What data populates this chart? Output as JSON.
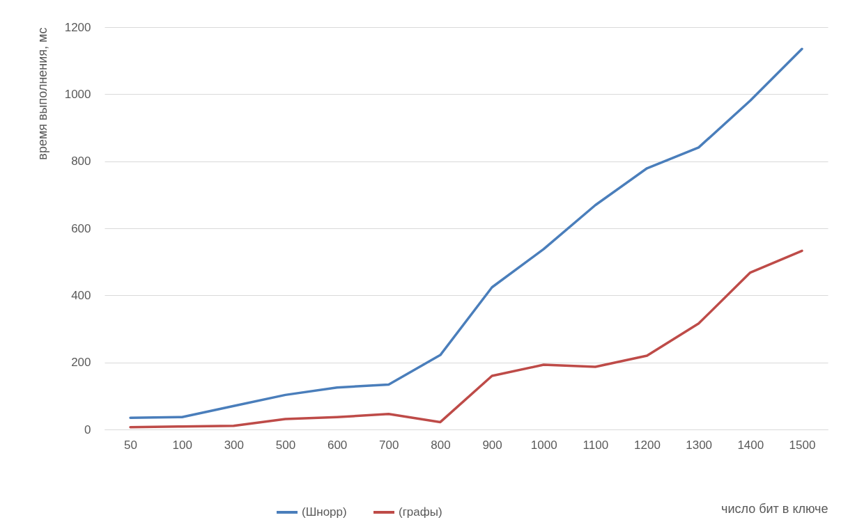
{
  "chart_data": {
    "type": "line",
    "xlabel": "число бит в ключе",
    "ylabel": "время выполнения, мс",
    "categories": [
      "50",
      "100",
      "300",
      "500",
      "600",
      "700",
      "800",
      "900",
      "1000",
      "1100",
      "1200",
      "1300",
      "1400",
      "1500"
    ],
    "series": [
      {
        "name": "(Шнорр)",
        "color": "#4a7ebb",
        "values": [
          35,
          37,
          70,
          103,
          125,
          134,
          222,
          424,
          538,
          669,
          779,
          841,
          981,
          1135
        ]
      },
      {
        "name": "(графы)",
        "color": "#be4b48",
        "values": [
          7,
          9,
          11,
          31,
          37,
          46,
          22,
          160,
          193,
          187,
          220,
          316,
          468,
          533
        ]
      }
    ],
    "ylim": [
      0,
      1200
    ],
    "yticks": [
      0,
      200,
      400,
      600,
      800,
      1000,
      1200
    ],
    "grid": "y",
    "legend": "bottom",
    "marker": "none",
    "line_style": "solid"
  }
}
